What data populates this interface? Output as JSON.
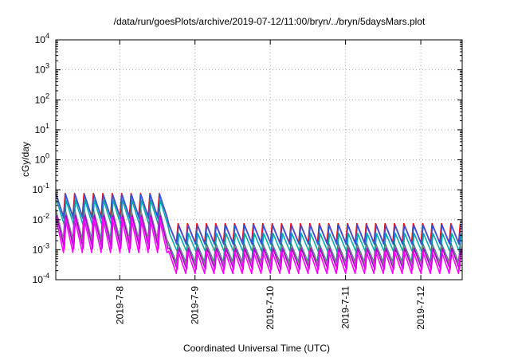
{
  "chart_data": {
    "type": "line",
    "title": "/data/run/goesPlots/archive/2019-07-12/11:00/bryn/../bryn/5daysMars.plot",
    "xlabel": "Coordinated Universal Time (UTC)",
    "ylabel": "cGy/day",
    "y_scale": "log",
    "ylim": [
      0.0001,
      10000
    ],
    "xlim_days": [
      -0.85,
      4.55
    ],
    "grid": true,
    "y_ticks": [
      {
        "base": "10",
        "exp": "-4",
        "value": 0.0001
      },
      {
        "base": "10",
        "exp": "-3",
        "value": 0.001
      },
      {
        "base": "10",
        "exp": "-2",
        "value": 0.01
      },
      {
        "base": "10",
        "exp": "-1",
        "value": 0.1
      },
      {
        "base": "10",
        "exp": "0",
        "value": 1
      },
      {
        "base": "10",
        "exp": "1",
        "value": 10
      },
      {
        "base": "10",
        "exp": "2",
        "value": 100
      },
      {
        "base": "10",
        "exp": "3",
        "value": 1000
      },
      {
        "base": "10",
        "exp": "4",
        "value": 10000
      }
    ],
    "x_ticks": [
      {
        "label": "2019-7-8",
        "day": 0
      },
      {
        "label": "2019-7-9",
        "day": 1
      },
      {
        "label": "2019-7-10",
        "day": 2
      },
      {
        "label": "2019-7-11",
        "day": 3
      },
      {
        "label": "2019-7-12",
        "day": 4
      }
    ],
    "pattern": {
      "teeth_per_day": 8,
      "step_change_day": 0.6,
      "teeth_phase": -0.85
    },
    "series": [
      {
        "color": "#ff0000",
        "peak_before": 0.075,
        "trough_before": 0.013,
        "peak_after": 0.0075,
        "trough_after": 0.0017
      },
      {
        "color": "#3355dd",
        "peak_before": 0.07,
        "trough_before": 0.011,
        "peak_after": 0.0065,
        "trough_after": 0.0015
      },
      {
        "color": "#00aaaa",
        "peak_before": 0.045,
        "trough_before": 0.0065,
        "peak_after": 0.0035,
        "trough_after": 0.00085
      },
      {
        "color": "#1a8080",
        "peak_before": 0.022,
        "trough_before": 0.0022,
        "peak_after": 0.0016,
        "trough_after": 0.00038
      },
      {
        "color": "#888888",
        "peak_before": 0.018,
        "trough_before": 0.0019,
        "peak_after": 0.0013,
        "trough_after": 0.00033
      },
      {
        "color": "#aa00cc",
        "peak_before": 0.014,
        "trough_before": 0.0011,
        "peak_after": 0.0011,
        "trough_after": 0.00022
      },
      {
        "color": "#ff00ff",
        "peak_before": 0.012,
        "trough_before": 0.0008,
        "peak_after": 0.0009,
        "trough_after": 0.00016
      }
    ]
  }
}
